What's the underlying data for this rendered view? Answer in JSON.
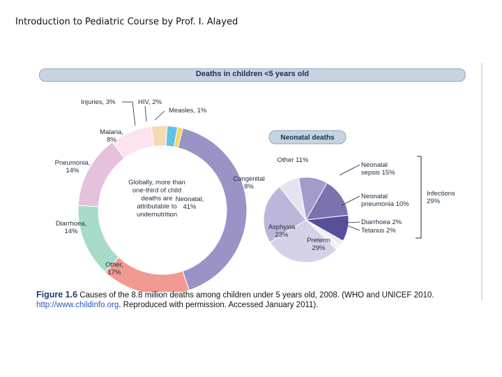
{
  "header": {
    "text": "Introduction to Pediatric Course by Prof. I. Alayed"
  },
  "figure": {
    "banner_title": "Deaths in children <5 years old",
    "caption_label": "Figure 1.6",
    "caption_text": "Causes of the 8.8 million deaths among children under 5 years old, 2008. (WHO and UNICEF 2010.",
    "caption_link": "http://www.childinfo.org",
    "caption_tail": ". Reproduced with permission. Accessed January 2011)."
  },
  "chart_data": [
    {
      "type": "pie",
      "title": "Deaths in children <5 years old",
      "slices": [
        {
          "label": "Neonatal, 41%",
          "value": 41,
          "color": "#9a93c6"
        },
        {
          "label": "Other, 17%",
          "value": 17,
          "color": "#f19a91"
        },
        {
          "label": "Diarrhoea, 14%",
          "value": 14,
          "color": "#a8dcc9"
        },
        {
          "label": "Pneumonia, 14%",
          "value": 14,
          "color": "#e6c1dd"
        },
        {
          "label": "Malaria, 8%",
          "value": 8,
          "color": "#fbe4ef"
        },
        {
          "label": "Injuries, 3%",
          "value": 3,
          "color": "#f8d9b6"
        },
        {
          "label": "HIV, 2%",
          "value": 2,
          "color": "#5fc3e8"
        },
        {
          "label": "Measles, 1%",
          "value": 1,
          "color": "#f7d865"
        }
      ],
      "center_note": [
        "Globally, more than",
        "one-third of child",
        "deaths are",
        "attributable to",
        "undernutrition"
      ]
    },
    {
      "type": "pie",
      "title": "Neonatal deaths",
      "slices": [
        {
          "label": "Other 11%",
          "value": 11,
          "color": "#a39cc9"
        },
        {
          "label": "Neonatal sepsis 15%",
          "value": 15,
          "color": "#7b73b0"
        },
        {
          "label": "Neonatal pneumonia 10%",
          "value": 10,
          "color": "#56509a"
        },
        {
          "label": "Diarrhoea 2%",
          "value": 2,
          "color": "#ece9f5"
        },
        {
          "label": "Tetanus 2%",
          "value": 2,
          "color": "#f3f1f8"
        },
        {
          "label": "Preterm 29%",
          "value": 29,
          "color": "#d5d2e8"
        },
        {
          "label": "Asphyxia 23%",
          "value": 23,
          "color": "#bcb7da"
        },
        {
          "label": "Congenital 8%",
          "value": 8,
          "color": "#e6e3f1"
        }
      ],
      "group_label": [
        "Infections",
        "29%"
      ]
    }
  ]
}
